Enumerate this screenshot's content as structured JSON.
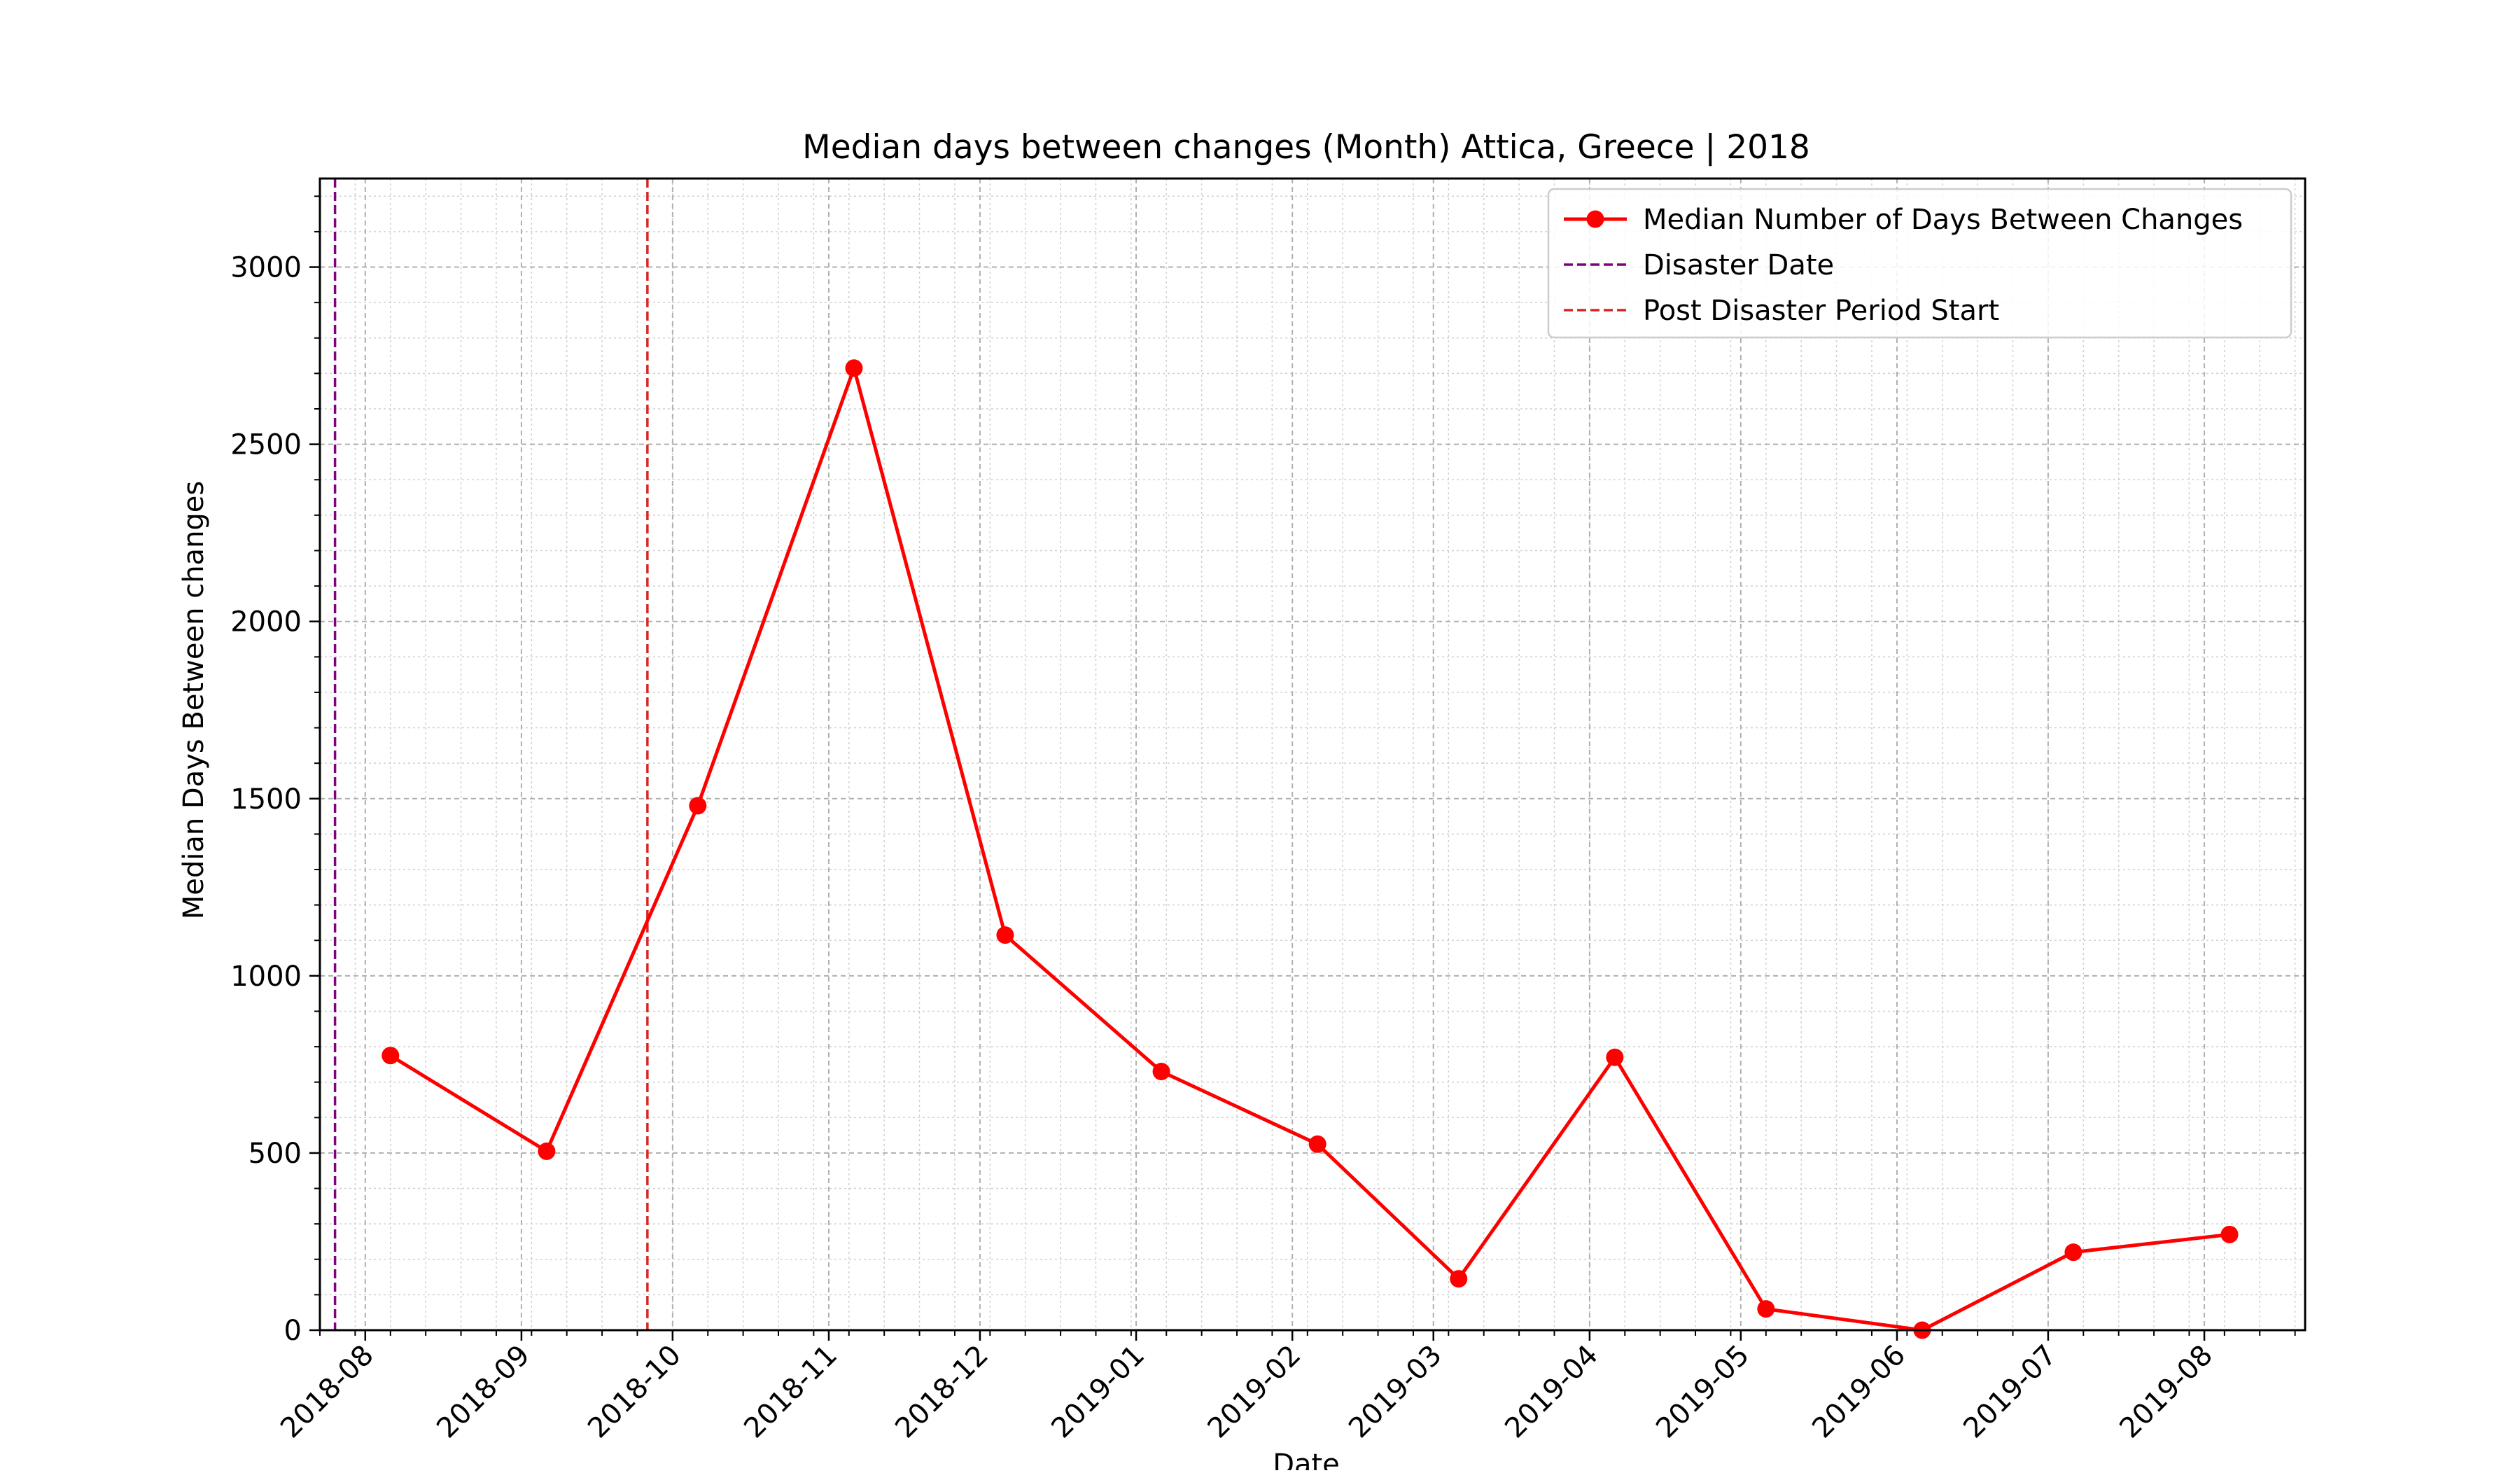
{
  "chart_data": {
    "type": "line",
    "title": "Median days between changes (Month) Attica, Greece | 2018",
    "xlabel": "Date",
    "ylabel": "Median Days Between changes",
    "x_ticks": [
      "2018-08",
      "2018-09",
      "2018-10",
      "2018-11",
      "2018-12",
      "2019-01",
      "2019-02",
      "2019-03",
      "2019-04",
      "2019-05",
      "2019-06",
      "2019-07",
      "2019-08"
    ],
    "y_ticks": [
      0,
      500,
      1000,
      1500,
      2000,
      2500,
      3000
    ],
    "xlim": [
      "2018-07-23",
      "2019-08-21"
    ],
    "ylim": [
      0,
      3250
    ],
    "grid": true,
    "legend_position": "top-right",
    "series": [
      {
        "name": "Median Number of Days Between Changes",
        "color": "#ff0000",
        "style": "solid-with-circle-markers",
        "x": [
          "2018-08-06",
          "2018-09-06",
          "2018-10-06",
          "2018-11-06",
          "2018-12-06",
          "2019-01-06",
          "2019-02-06",
          "2019-03-06",
          "2019-04-06",
          "2019-05-06",
          "2019-06-06",
          "2019-07-06",
          "2019-08-06"
        ],
        "y": [
          775,
          505,
          1480,
          2715,
          1115,
          730,
          525,
          145,
          770,
          60,
          0,
          220,
          270
        ]
      }
    ],
    "vlines": [
      {
        "name": "Disaster Date",
        "x": "2018-07-26",
        "color": "#800080",
        "style": "dashed"
      },
      {
        "name": "Post Disaster Period Start",
        "x": "2018-09-26",
        "color": "#d62728",
        "style": "dashed"
      }
    ]
  }
}
